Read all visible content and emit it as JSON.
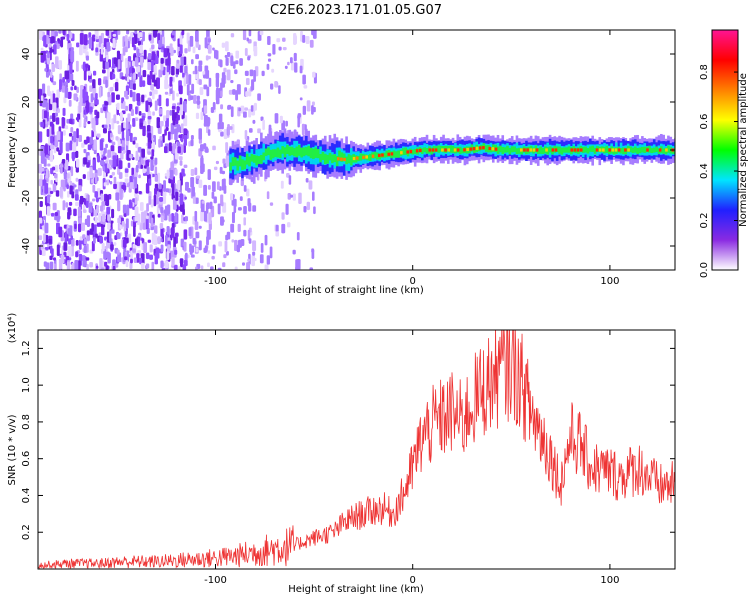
{
  "title": "C2E6.2023.171.01.05.G07",
  "chart_data": [
    {
      "type": "heatmap",
      "xlabel": "Height of straight line (km)",
      "ylabel": "Frequency (Hz)",
      "xlim": [
        -190,
        133
      ],
      "ylim": [
        -50,
        50
      ],
      "x_ticks": [
        -100,
        0,
        100
      ],
      "x_tick_labels": [
        "-100",
        "0",
        "100"
      ],
      "y_ticks": [
        -40,
        -20,
        0,
        20,
        40
      ],
      "y_tick_labels": [
        "-40",
        "-20",
        "0",
        "20",
        "40"
      ],
      "colorbar": {
        "label": "Normalized spectral amplitude",
        "range": [
          0,
          0.97
        ],
        "ticks": [
          0.0,
          0.2,
          0.4,
          0.6,
          0.8
        ],
        "tick_labels": [
          "0.0",
          "0.2",
          "0.4",
          "0.6",
          "0.8"
        ],
        "colors": [
          "#ffffff",
          "#8a2be2",
          "#2020ff",
          "#00e5ff",
          "#00ff00",
          "#ffff00",
          "#ff8000",
          "#ff0000",
          "#ff1493"
        ]
      },
      "signal_track": {
        "x": [
          -93,
          -85,
          -75,
          -65,
          -55,
          -45,
          -35,
          -25,
          -15,
          -5,
          5,
          15,
          25,
          35,
          45,
          55,
          65,
          75,
          85,
          95,
          105,
          115,
          125,
          133
        ],
        "y": [
          -6,
          -5,
          -2,
          0,
          -1,
          -3,
          -4,
          -3,
          -2,
          -1,
          0,
          0,
          0,
          1,
          0,
          0,
          0,
          0,
          0,
          0,
          0,
          0,
          0,
          0
        ]
      },
      "noise_region_x": [
        -190,
        -55
      ],
      "grid": false
    },
    {
      "type": "line",
      "xlabel": "Height of straight line (km)",
      "ylabel": "SNR (10 * v/v)",
      "yscale_label": "(x10⁴)",
      "xlim": [
        -190,
        133
      ],
      "ylim": [
        0,
        1.3
      ],
      "x_ticks": [
        -100,
        0,
        100
      ],
      "x_tick_labels": [
        "-100",
        "0",
        "100"
      ],
      "y_ticks": [
        0.2,
        0.4,
        0.6,
        0.8,
        1.0,
        1.2
      ],
      "y_tick_labels": [
        "0.2",
        "0.4",
        "0.6",
        "0.8",
        "1.0",
        "1.2"
      ],
      "series": [
        {
          "color": "#ee3333",
          "x": [
            -190,
            -175,
            -160,
            -145,
            -130,
            -115,
            -100,
            -90,
            -80,
            -70,
            -60,
            -50,
            -40,
            -35,
            -30,
            -25,
            -20,
            -15,
            -10,
            -5,
            0,
            5,
            10,
            15,
            20,
            25,
            30,
            35,
            40,
            45,
            50,
            55,
            60,
            65,
            70,
            75,
            80,
            85,
            90,
            95,
            100,
            105,
            110,
            115,
            120,
            125,
            133
          ],
          "y": [
            0.02,
            0.03,
            0.03,
            0.04,
            0.04,
            0.05,
            0.06,
            0.07,
            0.09,
            0.11,
            0.13,
            0.17,
            0.2,
            0.25,
            0.28,
            0.3,
            0.32,
            0.33,
            0.3,
            0.4,
            0.55,
            0.72,
            0.78,
            0.82,
            0.85,
            0.8,
            0.9,
            0.97,
            1.02,
            1.08,
            1.12,
            1.02,
            0.85,
            0.74,
            0.62,
            0.46,
            0.72,
            0.68,
            0.56,
            0.54,
            0.53,
            0.5,
            0.53,
            0.55,
            0.5,
            0.45,
            0.46
          ]
        }
      ],
      "grid": false
    }
  ]
}
